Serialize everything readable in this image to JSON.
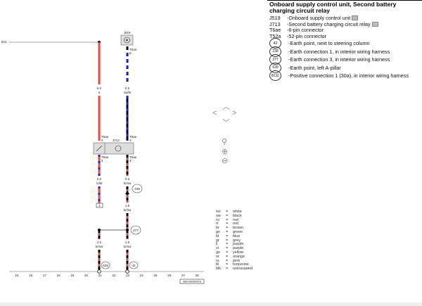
{
  "legend": {
    "title": "Onboard supply control unit, Second battery charging circuit relay",
    "items": [
      {
        "code": "J519",
        "text": "-Onboard supply control unit",
        "camera": true
      },
      {
        "code": "J713",
        "text": "-Second battery charging circuit relay",
        "camera": true
      },
      {
        "code": "T6ae",
        "text": "-6-pin connector"
      },
      {
        "code": "T52a",
        "text": "-52-pin connector"
      }
    ],
    "circles": [
      {
        "code": "42",
        "text": "-Earth point, next to steering column"
      },
      {
        "code": "238",
        "text": "-Earth connection 1, in interior wiring harness"
      },
      {
        "code": "277",
        "text": "-Earth connection 3, in interior wiring harness"
      },
      {
        "code": "639",
        "text": "-Earth point, left A-pillar"
      },
      {
        "code": "B111",
        "text": "-Positive connection 1 (30a), in interior wiring harness"
      }
    ]
  },
  "colour_codes": [
    [
      "ws",
      "white"
    ],
    [
      "sw",
      "black"
    ],
    [
      "ro",
      "red"
    ],
    [
      "rt",
      "red"
    ],
    [
      "br",
      "brown"
    ],
    [
      "gn",
      "green"
    ],
    [
      "bl",
      "blue"
    ],
    [
      "gr",
      "grey"
    ],
    [
      "li",
      "purple"
    ],
    [
      "vi",
      "purple"
    ],
    [
      "ge",
      "yellow"
    ],
    [
      "or",
      "orange"
    ],
    [
      "rs",
      "pink"
    ],
    [
      "tk",
      "turquoise"
    ],
    [
      "blk",
      "uninsulated"
    ]
  ],
  "diagram": {
    "left_stub": "B11",
    "j519": "J519",
    "j713": "J713",
    "pins": {
      "t52a": "T52a",
      "t52a_pin": "8",
      "t6ae_2": "T6ae",
      "t6ae_2p": "2",
      "t6ae_3": "T6ae",
      "t6ae_3p": "3",
      "t6ae_1": "T6ae",
      "t6ae_1p": "1",
      "t6ae_4": "T6ae",
      "t6ae_4p": "4"
    },
    "wires": [
      {
        "size": "6.0",
        "colour": "rt"
      },
      {
        "size": "0.5",
        "colour": "sw/bl"
      },
      {
        "size": "6.0",
        "colour": "ro/bl"
      },
      {
        "size": "0.5",
        "colour": "br/sw"
      },
      {
        "size": "1.5",
        "colour": "br/sw"
      },
      {
        "size": "4.0",
        "colour": "br/sw"
      },
      {
        "size": "1.5",
        "colour": "br/sw"
      }
    ],
    "earth_238": "238",
    "earth_277": "277",
    "earth_639": "639",
    "earth_42": "42",
    "connector_box": "1",
    "ruler": [
      "15",
      "16",
      "17",
      "18",
      "19",
      "20",
      "21",
      "22",
      "23",
      "24",
      "25",
      "26",
      "27",
      "28"
    ],
    "stamp": "380-00000416"
  },
  "colors": {
    "red": "#f04a3a",
    "blue": "#1a1aff",
    "black": "#000000",
    "brown": "#b8584e"
  }
}
